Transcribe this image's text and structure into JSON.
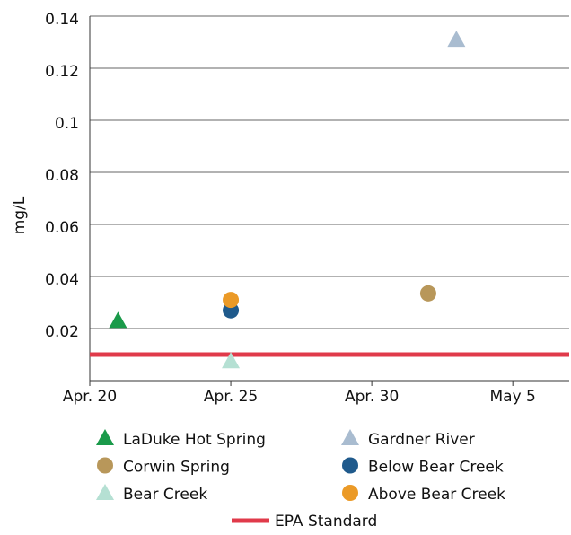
{
  "chart_data": {
    "type": "scatter",
    "ylabel": "mg/L",
    "xlim": [
      "Apr. 20",
      "May 7"
    ],
    "xticks": [
      "Apr. 20",
      "Apr. 25",
      "Apr. 30",
      "May 5"
    ],
    "ylim": [
      0,
      0.14
    ],
    "yticks": [
      0.02,
      0.04,
      0.06,
      0.08,
      0.1,
      0.12,
      0.14
    ],
    "grid": true,
    "series": [
      {
        "name": "LaDuke Hot Spring",
        "color": "#1a9a4a",
        "marker": "triangle",
        "x": [
          "Apr. 21"
        ],
        "values": [
          0.023
        ]
      },
      {
        "name": "Gardner River",
        "color": "#a9bcd0",
        "marker": "triangle",
        "x": [
          "May 3"
        ],
        "values": [
          0.131
        ]
      },
      {
        "name": "Corwin Spring",
        "color": "#b8975a",
        "marker": "circle",
        "x": [
          "May 2"
        ],
        "values": [
          0.0335
        ]
      },
      {
        "name": "Below Bear Creek",
        "color": "#1f5a8c",
        "marker": "circle",
        "x": [
          "Apr. 25"
        ],
        "values": [
          0.027
        ]
      },
      {
        "name": "Bear Creek",
        "color": "#b5e0d3",
        "marker": "triangle",
        "x": [
          "Apr. 25"
        ],
        "values": [
          0.0075
        ]
      },
      {
        "name": "Above Bear Creek",
        "color": "#eb9a27",
        "marker": "circle",
        "x": [
          "Apr. 25"
        ],
        "values": [
          0.031
        ]
      }
    ],
    "reference": {
      "name": "EPA Standard",
      "color": "#e03a4a",
      "value": 0.01
    }
  }
}
